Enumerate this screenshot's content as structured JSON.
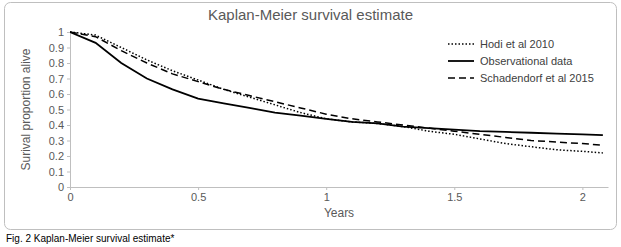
{
  "chart_data": {
    "type": "line",
    "title": "Kaplan-Meier survival estimate",
    "x_label": "Years",
    "y_label": "Surival proportion alive",
    "caption": "Fig. 2 Kaplan-Meier survival estimate*",
    "x": [
      0,
      0.1,
      0.2,
      0.3,
      0.4,
      0.5,
      0.6,
      0.7,
      0.8,
      0.9,
      1.0,
      1.1,
      1.2,
      1.3,
      1.4,
      1.5,
      1.6,
      1.7,
      1.8,
      1.9,
      2.0,
      2.08
    ],
    "series": [
      {
        "name": "Hodi et al 2010",
        "color": "#000000",
        "line_style": "dotted",
        "values": [
          1,
          0.98,
          0.9,
          0.82,
          0.75,
          0.69,
          0.63,
          0.58,
          0.53,
          0.48,
          0.44,
          0.42,
          0.41,
          0.39,
          0.36,
          0.34,
          0.31,
          0.28,
          0.26,
          0.24,
          0.23,
          0.22
        ]
      },
      {
        "name": "Observational data",
        "color": "#000000",
        "line_style": "solid",
        "values": [
          1,
          0.93,
          0.8,
          0.7,
          0.63,
          0.57,
          0.54,
          0.51,
          0.48,
          0.46,
          0.44,
          0.42,
          0.41,
          0.39,
          0.38,
          0.37,
          0.36,
          0.355,
          0.35,
          0.345,
          0.34,
          0.335
        ]
      },
      {
        "name": "Schadendorf et al 2015",
        "color": "#000000",
        "line_style": "dashed",
        "values": [
          1,
          0.97,
          0.88,
          0.8,
          0.73,
          0.68,
          0.63,
          0.59,
          0.55,
          0.51,
          0.47,
          0.44,
          0.42,
          0.4,
          0.38,
          0.36,
          0.34,
          0.32,
          0.3,
          0.29,
          0.28,
          0.27
        ]
      }
    ],
    "xlim": [
      0,
      2.1
    ],
    "xticks": [
      0,
      0.5,
      1,
      1.5,
      2
    ],
    "ylim": [
      0,
      1
    ],
    "yticks": [
      0,
      0.1,
      0.2,
      0.3,
      0.4,
      0.5,
      0.6,
      0.7,
      0.8,
      0.9,
      1
    ],
    "grid": false,
    "legend": "top-right"
  }
}
